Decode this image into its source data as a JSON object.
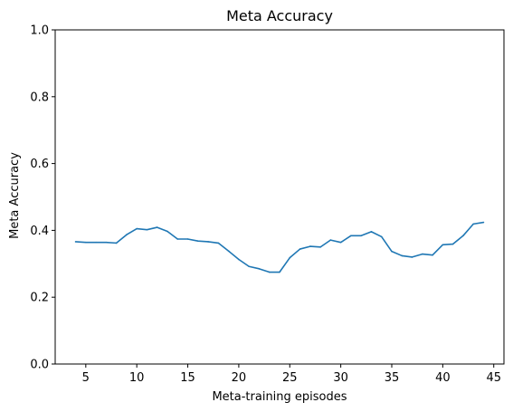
{
  "chart_data": {
    "type": "line",
    "title": "Meta Accuracy",
    "xlabel": "Meta-training episodes",
    "ylabel": "Meta Accuracy",
    "xlim": [
      2,
      46
    ],
    "ylim": [
      0.0,
      1.0
    ],
    "xticks": [
      5,
      10,
      15,
      20,
      25,
      30,
      35,
      40,
      45
    ],
    "yticks": [
      0.0,
      0.2,
      0.4,
      0.6,
      0.8,
      1.0
    ],
    "xtick_labels": [
      "5",
      "10",
      "15",
      "20",
      "25",
      "30",
      "35",
      "40",
      "45"
    ],
    "ytick_labels": [
      "0.0",
      "0.2",
      "0.4",
      "0.6",
      "0.8",
      "1.0"
    ],
    "grid": false,
    "series": [
      {
        "color": "#1f77b4",
        "x": [
          4,
          5,
          6,
          7,
          8,
          9,
          10,
          11,
          12,
          13,
          14,
          15,
          16,
          17,
          18,
          19,
          20,
          21,
          22,
          23,
          24,
          25,
          26,
          27,
          28,
          29,
          30,
          31,
          32,
          33,
          34,
          35,
          36,
          37,
          38,
          39,
          40,
          41,
          42,
          43,
          44
        ],
        "y": [
          0.366,
          0.364,
          0.364,
          0.364,
          0.362,
          0.387,
          0.405,
          0.402,
          0.409,
          0.397,
          0.374,
          0.374,
          0.368,
          0.366,
          0.362,
          0.338,
          0.313,
          0.292,
          0.285,
          0.275,
          0.275,
          0.318,
          0.344,
          0.352,
          0.35,
          0.371,
          0.364,
          0.384,
          0.384,
          0.396,
          0.381,
          0.337,
          0.324,
          0.32,
          0.329,
          0.326,
          0.357,
          0.359,
          0.384,
          0.419,
          0.424
        ]
      }
    ]
  }
}
